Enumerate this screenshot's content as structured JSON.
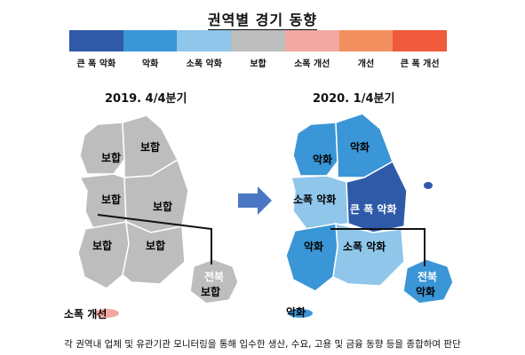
{
  "title": "권역별 경기 동향",
  "legend": [
    {
      "label": "큰 폭 악화",
      "color": "#2e5aa8"
    },
    {
      "label": "악화",
      "color": "#3a96d6"
    },
    {
      "label": "소폭 악화",
      "color": "#8fc6ea"
    },
    {
      "label": "보합",
      "color": "#bdbdbd"
    },
    {
      "label": "소폭 개선",
      "color": "#f2a8a0"
    },
    {
      "label": "개선",
      "color": "#f49060"
    },
    {
      "label": "큰 폭 개선",
      "color": "#ef5a3c"
    }
  ],
  "left_map": {
    "period": "2019. 4/4분기",
    "regions": {
      "r1": "보합",
      "r2": "보합",
      "r3": "보합",
      "r4": "보합",
      "r5": "보합",
      "r6": "보합",
      "jeonbuk": "전북",
      "jeonbuk_status": "보합",
      "jeju": "소폭 개선"
    }
  },
  "right_map": {
    "period": "2020. 1/4분기",
    "regions": {
      "r1": "악화",
      "r2": "악화",
      "r3": "소폭 악화",
      "r4": "큰 폭 악화",
      "r5": "악화",
      "r6": "소폭 악화",
      "jeonbuk": "전북",
      "jeonbuk_status": "악화",
      "jeju": "악화"
    }
  },
  "footer": "각 권역내 업체 및 유관기관 모니터링을 통해 입수한 생산, 수요, 고용 및 금융 동향 등을 종합하여 판단"
}
